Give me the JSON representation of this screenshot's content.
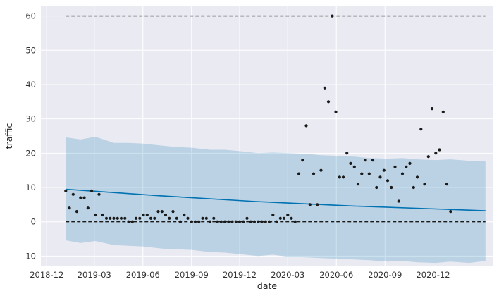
{
  "chart_data": {
    "type": "line",
    "title": "",
    "xlabel": "date",
    "ylabel": "traffic",
    "x_ticks": [
      "2018-12",
      "2019-03",
      "2019-06",
      "2019-09",
      "2019-12",
      "2020-03",
      "2020-06",
      "2020-09",
      "2020-12"
    ],
    "y_ticks": [
      -10,
      0,
      10,
      20,
      30,
      40,
      50,
      60
    ],
    "xlim": [
      "2018-11-20",
      "2021-03-25"
    ],
    "ylim": [
      -13,
      63
    ],
    "grid": true,
    "legend": "none",
    "colors": {
      "background": "#EAEAF2",
      "grid": "#FFFFFF",
      "trend": "#0072B2",
      "interval_fill": "#0072B2",
      "points": "#1A1A1A",
      "cap_line": "#1A1A1A"
    },
    "series": [
      {
        "role": "observed",
        "points": [
          {
            "x": "2019-01-06",
            "y": 9
          },
          {
            "x": "2019-01-13",
            "y": 4
          },
          {
            "x": "2019-01-20",
            "y": 8
          },
          {
            "x": "2019-01-27",
            "y": 3
          },
          {
            "x": "2019-02-03",
            "y": 7
          },
          {
            "x": "2019-02-10",
            "y": 7
          },
          {
            "x": "2019-02-17",
            "y": 4
          },
          {
            "x": "2019-02-24",
            "y": 9
          },
          {
            "x": "2019-03-03",
            "y": 2
          },
          {
            "x": "2019-03-10",
            "y": 8
          },
          {
            "x": "2019-03-17",
            "y": 2
          },
          {
            "x": "2019-03-24",
            "y": 1
          },
          {
            "x": "2019-03-31",
            "y": 1
          },
          {
            "x": "2019-04-07",
            "y": 1
          },
          {
            "x": "2019-04-14",
            "y": 1
          },
          {
            "x": "2019-04-21",
            "y": 1
          },
          {
            "x": "2019-04-28",
            "y": 1
          },
          {
            "x": "2019-05-05",
            "y": 0
          },
          {
            "x": "2019-05-12",
            "y": 0
          },
          {
            "x": "2019-05-19",
            "y": 1
          },
          {
            "x": "2019-05-26",
            "y": 1
          },
          {
            "x": "2019-06-02",
            "y": 2
          },
          {
            "x": "2019-06-09",
            "y": 2
          },
          {
            "x": "2019-06-16",
            "y": 1
          },
          {
            "x": "2019-06-23",
            "y": 1
          },
          {
            "x": "2019-06-30",
            "y": 3
          },
          {
            "x": "2019-07-07",
            "y": 3
          },
          {
            "x": "2019-07-14",
            "y": 2
          },
          {
            "x": "2019-07-21",
            "y": 1
          },
          {
            "x": "2019-07-28",
            "y": 3
          },
          {
            "x": "2019-08-04",
            "y": 1
          },
          {
            "x": "2019-08-11",
            "y": 0
          },
          {
            "x": "2019-08-18",
            "y": 2
          },
          {
            "x": "2019-08-25",
            "y": 1
          },
          {
            "x": "2019-09-01",
            "y": 0
          },
          {
            "x": "2019-09-08",
            "y": 0
          },
          {
            "x": "2019-09-15",
            "y": 0
          },
          {
            "x": "2019-09-22",
            "y": 1
          },
          {
            "x": "2019-09-29",
            "y": 1
          },
          {
            "x": "2019-10-06",
            "y": 0
          },
          {
            "x": "2019-10-13",
            "y": 1
          },
          {
            "x": "2019-10-20",
            "y": 0
          },
          {
            "x": "2019-10-27",
            "y": 0
          },
          {
            "x": "2019-11-03",
            "y": 0
          },
          {
            "x": "2019-11-10",
            "y": 0
          },
          {
            "x": "2019-11-17",
            "y": 0
          },
          {
            "x": "2019-11-24",
            "y": 0
          },
          {
            "x": "2019-12-01",
            "y": 0
          },
          {
            "x": "2019-12-08",
            "y": 0
          },
          {
            "x": "2019-12-15",
            "y": 1
          },
          {
            "x": "2019-12-22",
            "y": 0
          },
          {
            "x": "2019-12-29",
            "y": 0
          },
          {
            "x": "2020-01-05",
            "y": 0
          },
          {
            "x": "2020-01-12",
            "y": 0
          },
          {
            "x": "2020-01-19",
            "y": 0
          },
          {
            "x": "2020-01-26",
            "y": 0
          },
          {
            "x": "2020-02-02",
            "y": 2
          },
          {
            "x": "2020-02-09",
            "y": 0
          },
          {
            "x": "2020-02-16",
            "y": 1
          },
          {
            "x": "2020-02-23",
            "y": 1
          },
          {
            "x": "2020-03-01",
            "y": 2
          },
          {
            "x": "2020-03-08",
            "y": 1
          },
          {
            "x": "2020-03-15",
            "y": 0
          },
          {
            "x": "2020-03-22",
            "y": 14
          },
          {
            "x": "2020-03-29",
            "y": 18
          },
          {
            "x": "2020-04-05",
            "y": 28
          },
          {
            "x": "2020-04-12",
            "y": 5
          },
          {
            "x": "2020-04-19",
            "y": 14
          },
          {
            "x": "2020-04-26",
            "y": 5
          },
          {
            "x": "2020-05-03",
            "y": 15
          },
          {
            "x": "2020-05-10",
            "y": 39
          },
          {
            "x": "2020-05-17",
            "y": 35
          },
          {
            "x": "2020-05-24",
            "y": 60
          },
          {
            "x": "2020-05-31",
            "y": 32
          },
          {
            "x": "2020-06-07",
            "y": 13
          },
          {
            "x": "2020-06-14",
            "y": 13
          },
          {
            "x": "2020-06-21",
            "y": 20
          },
          {
            "x": "2020-06-28",
            "y": 17
          },
          {
            "x": "2020-07-05",
            "y": 16
          },
          {
            "x": "2020-07-12",
            "y": 11
          },
          {
            "x": "2020-07-19",
            "y": 14
          },
          {
            "x": "2020-07-26",
            "y": 18
          },
          {
            "x": "2020-08-02",
            "y": 14
          },
          {
            "x": "2020-08-09",
            "y": 18
          },
          {
            "x": "2020-08-16",
            "y": 10
          },
          {
            "x": "2020-08-23",
            "y": 13
          },
          {
            "x": "2020-08-30",
            "y": 15
          },
          {
            "x": "2020-09-06",
            "y": 12
          },
          {
            "x": "2020-09-13",
            "y": 10
          },
          {
            "x": "2020-09-20",
            "y": 16
          },
          {
            "x": "2020-09-27",
            "y": 6
          },
          {
            "x": "2020-10-04",
            "y": 14
          },
          {
            "x": "2020-10-11",
            "y": 16
          },
          {
            "x": "2020-10-18",
            "y": 17
          },
          {
            "x": "2020-10-25",
            "y": 10
          },
          {
            "x": "2020-11-01",
            "y": 13
          },
          {
            "x": "2020-11-08",
            "y": 27
          },
          {
            "x": "2020-11-15",
            "y": 11
          },
          {
            "x": "2020-11-22",
            "y": 19
          },
          {
            "x": "2020-11-29",
            "y": 33
          },
          {
            "x": "2020-12-06",
            "y": 20
          },
          {
            "x": "2020-12-13",
            "y": 21
          },
          {
            "x": "2020-12-20",
            "y": 32
          },
          {
            "x": "2020-12-27",
            "y": 11
          },
          {
            "x": "2021-01-03",
            "y": 3
          }
        ]
      },
      {
        "role": "trend",
        "points": [
          {
            "x": "2019-01-06",
            "y": 9.5
          },
          {
            "x": "2019-07-01",
            "y": 7.6
          },
          {
            "x": "2020-01-01",
            "y": 5.9
          },
          {
            "x": "2020-07-01",
            "y": 4.6
          },
          {
            "x": "2021-01-01",
            "y": 3.6
          },
          {
            "x": "2021-03-10",
            "y": 3.2
          }
        ]
      },
      {
        "role": "interval_upper",
        "points": [
          {
            "x": "2019-01-06",
            "y": 24.6
          },
          {
            "x": "2019-02-03",
            "y": 24
          },
          {
            "x": "2019-03-03",
            "y": 24.8
          },
          {
            "x": "2019-04-07",
            "y": 23
          },
          {
            "x": "2019-05-05",
            "y": 23
          },
          {
            "x": "2019-06-02",
            "y": 22.8
          },
          {
            "x": "2019-07-07",
            "y": 22.2
          },
          {
            "x": "2019-08-04",
            "y": 21.8
          },
          {
            "x": "2019-09-01",
            "y": 21.6
          },
          {
            "x": "2019-10-06",
            "y": 21
          },
          {
            "x": "2019-11-03",
            "y": 21
          },
          {
            "x": "2019-12-01",
            "y": 20.6
          },
          {
            "x": "2020-01-05",
            "y": 20
          },
          {
            "x": "2020-02-02",
            "y": 20.2
          },
          {
            "x": "2020-03-01",
            "y": 20
          },
          {
            "x": "2020-04-05",
            "y": 19.8
          },
          {
            "x": "2020-05-03",
            "y": 19.4
          },
          {
            "x": "2020-06-07",
            "y": 19.2
          },
          {
            "x": "2020-07-05",
            "y": 19
          },
          {
            "x": "2020-08-02",
            "y": 18.6
          },
          {
            "x": "2020-09-06",
            "y": 18.4
          },
          {
            "x": "2020-10-04",
            "y": 18.6
          },
          {
            "x": "2020-11-01",
            "y": 18.2
          },
          {
            "x": "2020-12-06",
            "y": 18
          },
          {
            "x": "2021-01-03",
            "y": 18.2
          },
          {
            "x": "2021-02-07",
            "y": 17.8
          },
          {
            "x": "2021-03-10",
            "y": 17.6
          }
        ]
      },
      {
        "role": "interval_lower",
        "points": [
          {
            "x": "2019-01-06",
            "y": -5.4
          },
          {
            "x": "2019-02-03",
            "y": -6.2
          },
          {
            "x": "2019-03-03",
            "y": -5.6
          },
          {
            "x": "2019-04-07",
            "y": -6.8
          },
          {
            "x": "2019-05-05",
            "y": -7
          },
          {
            "x": "2019-06-02",
            "y": -7.2
          },
          {
            "x": "2019-07-07",
            "y": -7.8
          },
          {
            "x": "2019-08-04",
            "y": -8
          },
          {
            "x": "2019-09-01",
            "y": -8.2
          },
          {
            "x": "2019-10-06",
            "y": -8.8
          },
          {
            "x": "2019-11-03",
            "y": -9
          },
          {
            "x": "2019-12-01",
            "y": -9.4
          },
          {
            "x": "2020-01-05",
            "y": -10
          },
          {
            "x": "2020-02-02",
            "y": -9.6
          },
          {
            "x": "2020-03-01",
            "y": -10.2
          },
          {
            "x": "2020-04-05",
            "y": -10.4
          },
          {
            "x": "2020-05-03",
            "y": -10.6
          },
          {
            "x": "2020-06-07",
            "y": -10.8
          },
          {
            "x": "2020-07-05",
            "y": -11
          },
          {
            "x": "2020-08-02",
            "y": -11.2
          },
          {
            "x": "2020-09-06",
            "y": -11.6
          },
          {
            "x": "2020-10-04",
            "y": -11.4
          },
          {
            "x": "2020-11-01",
            "y": -11.8
          },
          {
            "x": "2020-12-06",
            "y": -12
          },
          {
            "x": "2021-01-03",
            "y": -11.6
          },
          {
            "x": "2021-02-07",
            "y": -12
          },
          {
            "x": "2021-03-10",
            "y": -11.4
          }
        ]
      },
      {
        "role": "cap",
        "points": [
          {
            "x": "2019-01-06",
            "y": 60
          },
          {
            "x": "2021-03-10",
            "y": 60
          }
        ]
      },
      {
        "role": "floor",
        "points": [
          {
            "x": "2019-01-06",
            "y": 0
          },
          {
            "x": "2021-03-10",
            "y": 0
          }
        ]
      }
    ]
  }
}
